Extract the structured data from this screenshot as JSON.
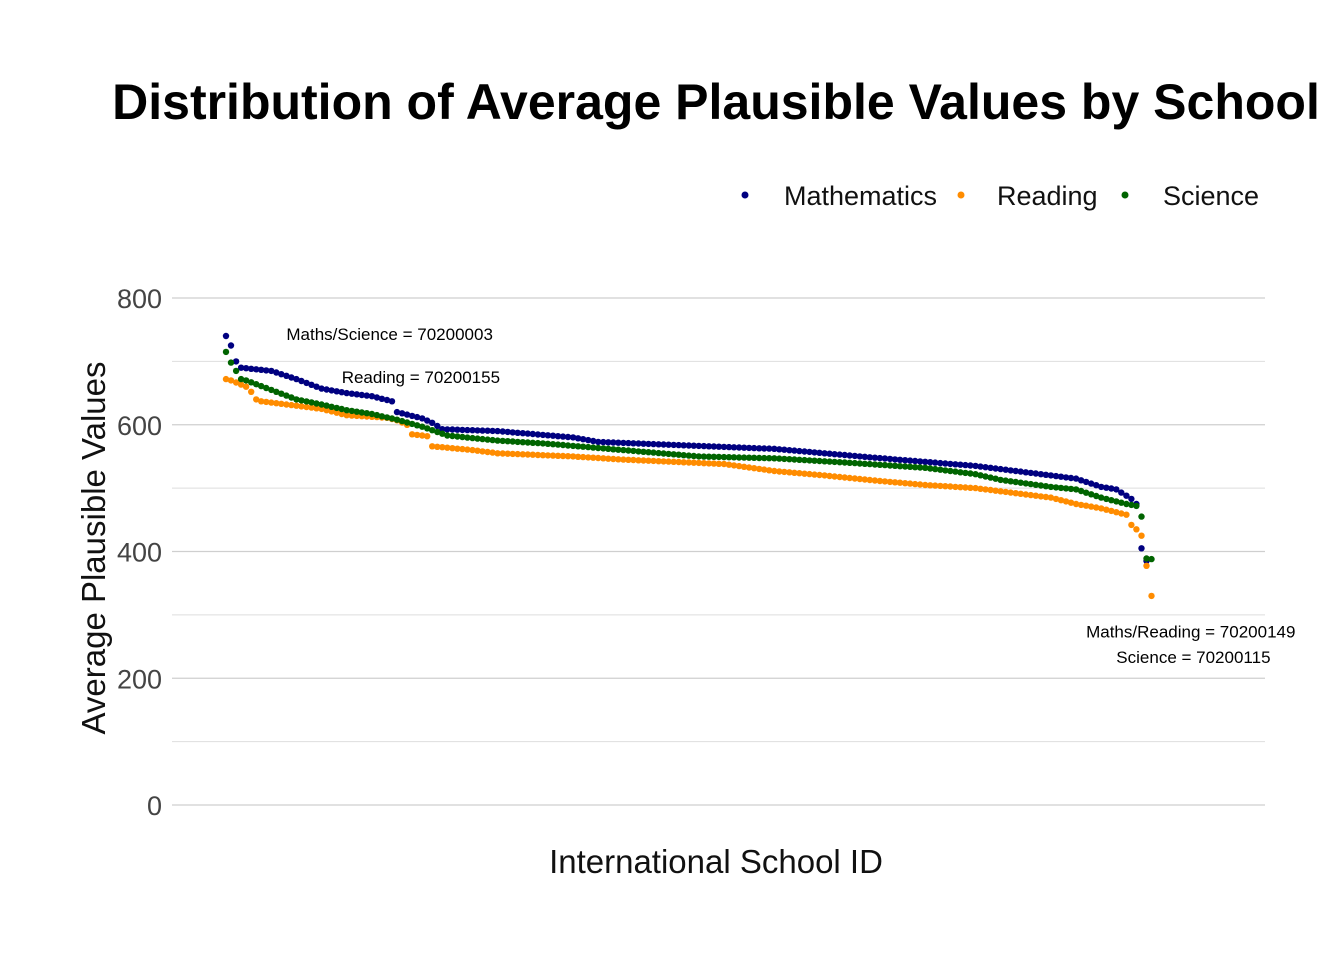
{
  "chart_data": {
    "type": "scatter",
    "title": "Distribution of Average Plausible Values by School",
    "xlabel": "International School ID",
    "ylabel": "Average Plausible Values",
    "ylim": [
      0,
      800
    ],
    "yticks": [
      "0",
      "200",
      "400",
      "600",
      "800"
    ],
    "grid": true,
    "legend_position": "top-right",
    "n_schools": 183,
    "series": [
      {
        "name": "Mathematics",
        "color": "#000080",
        "anchors": [
          [
            1,
            740
          ],
          [
            2,
            725
          ],
          [
            3,
            700
          ],
          [
            4,
            690
          ],
          [
            10,
            685
          ],
          [
            15,
            672
          ],
          [
            20,
            657
          ],
          [
            25,
            650
          ],
          [
            30,
            645
          ],
          [
            34,
            637
          ],
          [
            35,
            620
          ],
          [
            40,
            610
          ],
          [
            42,
            603
          ],
          [
            44,
            593
          ],
          [
            55,
            590
          ],
          [
            70,
            580
          ],
          [
            75,
            573
          ],
          [
            100,
            565
          ],
          [
            110,
            562
          ],
          [
            130,
            548
          ],
          [
            150,
            535
          ],
          [
            170,
            515
          ],
          [
            175,
            502
          ],
          [
            178,
            498
          ],
          [
            181,
            483
          ],
          [
            182,
            475
          ],
          [
            183,
            405
          ],
          [
            184,
            385
          ]
        ]
      },
      {
        "name": "Reading",
        "color": "#FF8C00",
        "anchors": [
          [
            1,
            672
          ],
          [
            2,
            670
          ],
          [
            5,
            660
          ],
          [
            6,
            652
          ],
          [
            7,
            640
          ],
          [
            8,
            637
          ],
          [
            15,
            630
          ],
          [
            20,
            625
          ],
          [
            25,
            615
          ],
          [
            33,
            611
          ],
          [
            35,
            607
          ],
          [
            37,
            600
          ],
          [
            38,
            585
          ],
          [
            41,
            582
          ],
          [
            42,
            566
          ],
          [
            50,
            560
          ],
          [
            55,
            555
          ],
          [
            70,
            550
          ],
          [
            80,
            545
          ],
          [
            100,
            538
          ],
          [
            110,
            527
          ],
          [
            120,
            520
          ],
          [
            130,
            512
          ],
          [
            140,
            505
          ],
          [
            150,
            500
          ],
          [
            160,
            490
          ],
          [
            165,
            485
          ],
          [
            170,
            475
          ],
          [
            175,
            468
          ],
          [
            180,
            458
          ],
          [
            181,
            442
          ],
          [
            182,
            435
          ],
          [
            183,
            425
          ],
          [
            185,
            330
          ]
        ]
      },
      {
        "name": "Science",
        "color": "#006400",
        "anchors": [
          [
            1,
            715
          ],
          [
            2,
            698
          ],
          [
            3,
            685
          ],
          [
            4,
            672
          ],
          [
            5,
            670
          ],
          [
            10,
            655
          ],
          [
            15,
            640
          ],
          [
            20,
            632
          ],
          [
            25,
            623
          ],
          [
            30,
            617
          ],
          [
            35,
            608
          ],
          [
            40,
            597
          ],
          [
            45,
            583
          ],
          [
            55,
            575
          ],
          [
            65,
            570
          ],
          [
            80,
            560
          ],
          [
            95,
            550
          ],
          [
            110,
            547
          ],
          [
            125,
            540
          ],
          [
            140,
            532
          ],
          [
            150,
            522
          ],
          [
            155,
            513
          ],
          [
            165,
            502
          ],
          [
            170,
            498
          ],
          [
            175,
            485
          ],
          [
            180,
            475
          ],
          [
            182,
            472
          ],
          [
            183,
            455
          ],
          [
            184,
            389
          ],
          [
            185,
            388
          ]
        ]
      }
    ],
    "annotations": [
      {
        "text": "Maths/Science = 70200003",
        "x": 13,
        "y": 734
      },
      {
        "text": "Reading = 70200155",
        "x": 24,
        "y": 666
      },
      {
        "text": "Maths/Reading = 70200149",
        "x": 172,
        "y": 264
      },
      {
        "text": "Science = 70200115",
        "x": 178,
        "y": 224
      }
    ]
  }
}
